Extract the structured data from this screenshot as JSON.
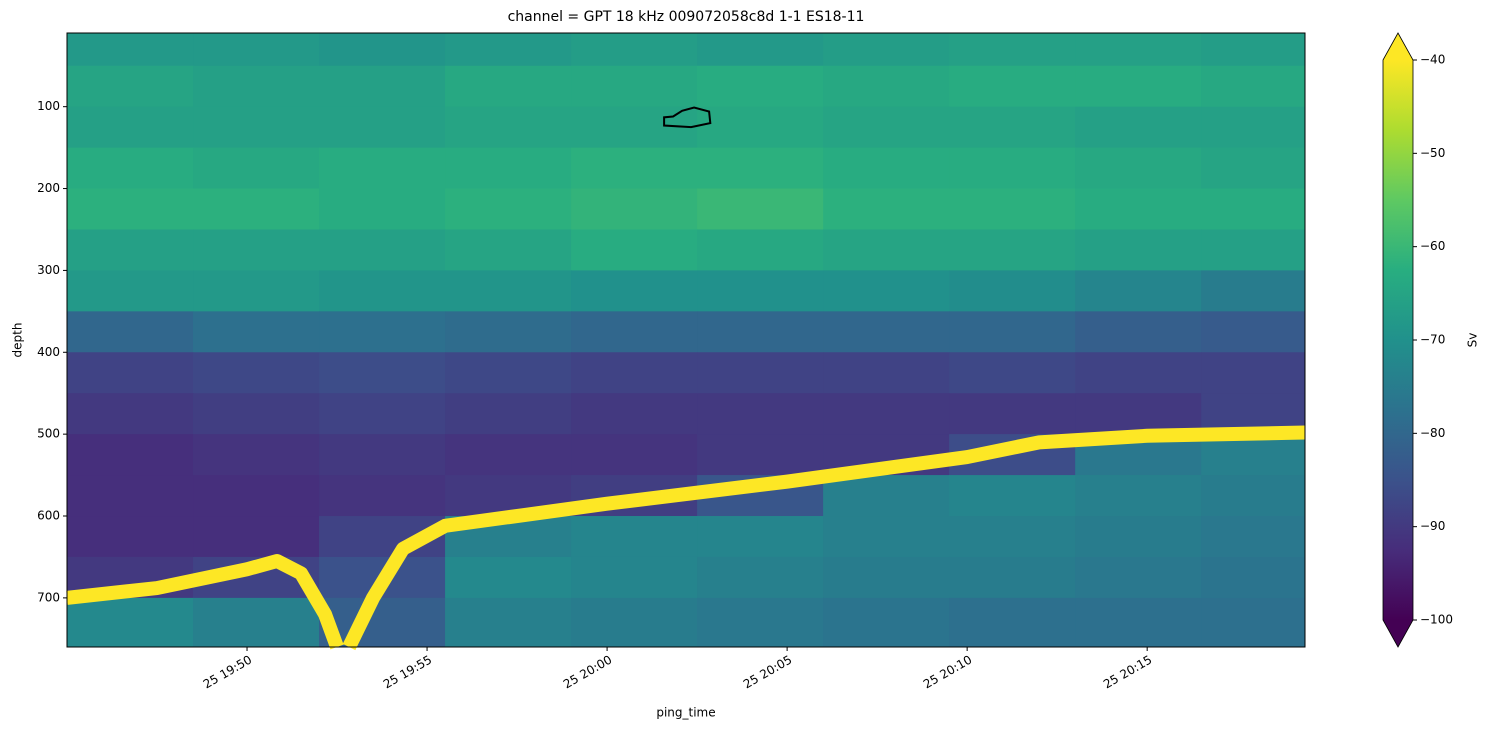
{
  "chart_data": {
    "type": "heatmap",
    "title": "channel = GPT  18 kHz 009072058c8d 1-1 ES18-11",
    "x_label": "ping_time",
    "y_label": "depth",
    "colorbar_label": "Sv",
    "colormap": "viridis",
    "xlim": [
      "19:45:00",
      "20:19:23"
    ],
    "xticks": [
      {
        "value": "19:50",
        "label": "25 19:50"
      },
      {
        "value": "19:55",
        "label": "25 19:55"
      },
      {
        "value": "20:00",
        "label": "25 20:00"
      },
      {
        "value": "20:05",
        "label": "25 20:05"
      },
      {
        "value": "20:10",
        "label": "25 20:10"
      },
      {
        "value": "20:15",
        "label": "25 20:15"
      }
    ],
    "ylim": [
      760,
      10
    ],
    "yticks": [
      100,
      200,
      300,
      400,
      500,
      600,
      700
    ],
    "x_edges": [
      "19:45:00",
      "19:48:30",
      "19:52:00",
      "19:55:30",
      "19:59:00",
      "20:02:30",
      "20:06:00",
      "20:09:30",
      "20:13:00",
      "20:16:30",
      "20:19:23"
    ],
    "y_edges": [
      10,
      50,
      100,
      150,
      200,
      250,
      300,
      350,
      400,
      450,
      500,
      550,
      600,
      650,
      700,
      760
    ],
    "z": [
      [
        -68,
        -68,
        -69,
        -68,
        -67,
        -68,
        -67,
        -66,
        -66,
        -67
      ],
      [
        -65,
        -66,
        -66,
        -64,
        -64,
        -63,
        -64,
        -63,
        -63,
        -64
      ],
      [
        -66,
        -66,
        -66,
        -65,
        -65,
        -64,
        -65,
        -65,
        -66,
        -66
      ],
      [
        -63,
        -64,
        -63,
        -63,
        -62,
        -62,
        -63,
        -63,
        -64,
        -65
      ],
      [
        -62,
        -62,
        -63,
        -62,
        -61,
        -60,
        -62,
        -62,
        -63,
        -63
      ],
      [
        -66,
        -66,
        -66,
        -65,
        -63,
        -64,
        -65,
        -65,
        -66,
        -66
      ],
      [
        -68,
        -68,
        -69,
        -69,
        -70,
        -70,
        -70,
        -71,
        -73,
        -75
      ],
      [
        -80,
        -78,
        -78,
        -79,
        -80,
        -80,
        -80,
        -80,
        -82,
        -83
      ],
      [
        -88,
        -87,
        -86,
        -87,
        -88,
        -88,
        -88,
        -87,
        -88,
        -88
      ],
      [
        -90,
        -89,
        -88,
        -89,
        -90,
        -90,
        -90,
        -90,
        -90,
        -88
      ],
      [
        -92,
        -91,
        -90,
        -91,
        -91,
        -90,
        -90,
        -86,
        -76,
        -74
      ],
      [
        -92,
        -92,
        -91,
        -90,
        -89,
        -84,
        -74,
        -73,
        -74,
        -75
      ],
      [
        -92,
        -92,
        -88,
        -74,
        -73,
        -73,
        -74,
        -74,
        -75,
        -76
      ],
      [
        -90,
        -88,
        -85,
        -72,
        -73,
        -74,
        -75,
        -75,
        -76,
        -77
      ],
      [
        -72,
        -74,
        -82,
        -74,
        -75,
        -76,
        -77,
        -78,
        -78,
        -78
      ]
    ],
    "bottom_line": {
      "color": "#fde725",
      "x": [
        "19:45:00",
        "19:47:30",
        "19:50:00",
        "19:50:50",
        "19:51:30",
        "19:52:10",
        "19:52:30",
        "19:52:40",
        "19:52:50",
        "19:53:30",
        "19:54:20",
        "19:55:30",
        "20:00:00",
        "20:05:00",
        "20:10:00",
        "20:12:00",
        "20:15:00",
        "20:19:23"
      ],
      "y": [
        700,
        688,
        665,
        655,
        670,
        720,
        760,
        null,
        760,
        700,
        640,
        612,
        585,
        558,
        528,
        510,
        502,
        498
      ]
    },
    "region": {
      "color": "#000000",
      "x": [
        "20:01:35",
        "20:01:35",
        "20:02:20",
        "20:02:52",
        "20:02:50",
        "20:02:25",
        "20:02:05",
        "20:01:50"
      ],
      "y": [
        113,
        123,
        125,
        120,
        106,
        101,
        105,
        112
      ]
    },
    "clim": [
      -100,
      -40
    ],
    "cticks": [
      {
        "value": -40,
        "label": "−40"
      },
      {
        "value": -50,
        "label": "−50"
      },
      {
        "value": -60,
        "label": "−60"
      },
      {
        "value": -70,
        "label": "−70"
      },
      {
        "value": -80,
        "label": "−80"
      },
      {
        "value": -90,
        "label": "−90"
      },
      {
        "value": -100,
        "label": "−100"
      }
    ]
  }
}
